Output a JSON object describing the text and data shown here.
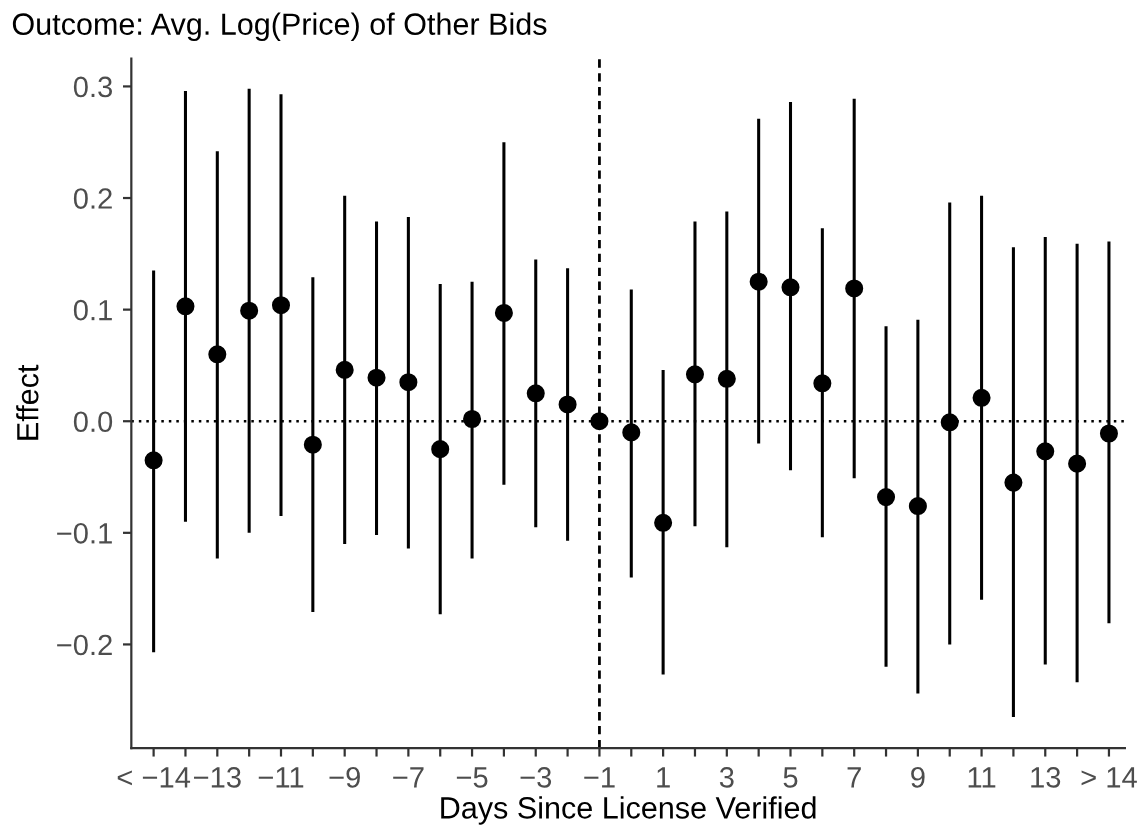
{
  "chart_data": {
    "type": "scatter",
    "title": "Outcome: Avg. Log(Price) of Other Bids",
    "xlabel": "Days Since License Verified",
    "ylabel": "Effect",
    "categories": [
      "< −14",
      null,
      "−13",
      null,
      "−11",
      null,
      "−9",
      null,
      "−7",
      null,
      "−5",
      null,
      "−3",
      null,
      "−1",
      null,
      "1",
      null,
      "3",
      null,
      "5",
      null,
      "7",
      null,
      "9",
      null,
      "11",
      null,
      "13",
      null,
      "> 14"
    ],
    "series": [
      {
        "color": "#000000",
        "values": [
          -0.035,
          0.103,
          0.06,
          0.099,
          0.104,
          -0.021,
          0.046,
          0.039,
          0.035,
          -0.025,
          0.002,
          0.097,
          0.025,
          0.015,
          0.0,
          -0.01,
          -0.091,
          0.042,
          0.038,
          0.125,
          0.12,
          0.034,
          0.119,
          -0.068,
          -0.076,
          -0.001,
          0.021,
          -0.055,
          -0.027,
          -0.038,
          -0.011
        ],
        "errors": [
          [
            -0.207,
            0.135
          ],
          [
            -0.09,
            0.296
          ],
          [
            -0.123,
            0.242
          ],
          [
            -0.1,
            0.298
          ],
          [
            -0.085,
            0.293
          ],
          [
            -0.171,
            0.129
          ],
          [
            -0.11,
            0.202
          ],
          [
            -0.102,
            0.179
          ],
          [
            -0.114,
            0.183
          ],
          [
            -0.173,
            0.123
          ],
          [
            -0.123,
            0.125
          ],
          [
            -0.057,
            0.25
          ],
          [
            -0.095,
            0.145
          ],
          [
            -0.107,
            0.137
          ],
          null,
          [
            -0.14,
            0.118
          ],
          [
            -0.227,
            0.046
          ],
          [
            -0.094,
            0.179
          ],
          [
            -0.113,
            0.188
          ],
          [
            -0.02,
            0.271
          ],
          [
            -0.044,
            0.286
          ],
          [
            -0.104,
            0.173
          ],
          [
            -0.051,
            0.289
          ],
          [
            -0.22,
            0.085
          ],
          [
            -0.244,
            0.091
          ],
          [
            -0.2,
            0.196
          ],
          [
            -0.16,
            0.202
          ],
          [
            -0.265,
            0.156
          ],
          [
            -0.218,
            0.165
          ],
          [
            -0.234,
            0.159
          ],
          [
            -0.181,
            0.161
          ]
        ]
      }
    ],
    "ylim": [
      -0.293,
      0.325
    ],
    "yticks": [
      -0.2,
      -0.1,
      {
        "value": 0,
        "label": "0.0"
      },
      0.1,
      0.2,
      0.3
    ],
    "ref_lines": [
      {
        "axis": "y",
        "value": 0,
        "line_style": "dotted"
      },
      {
        "axis": "x",
        "value": "−1",
        "line_style": "dashed"
      }
    ],
    "marker": "circle",
    "grid": false,
    "legend": false
  }
}
